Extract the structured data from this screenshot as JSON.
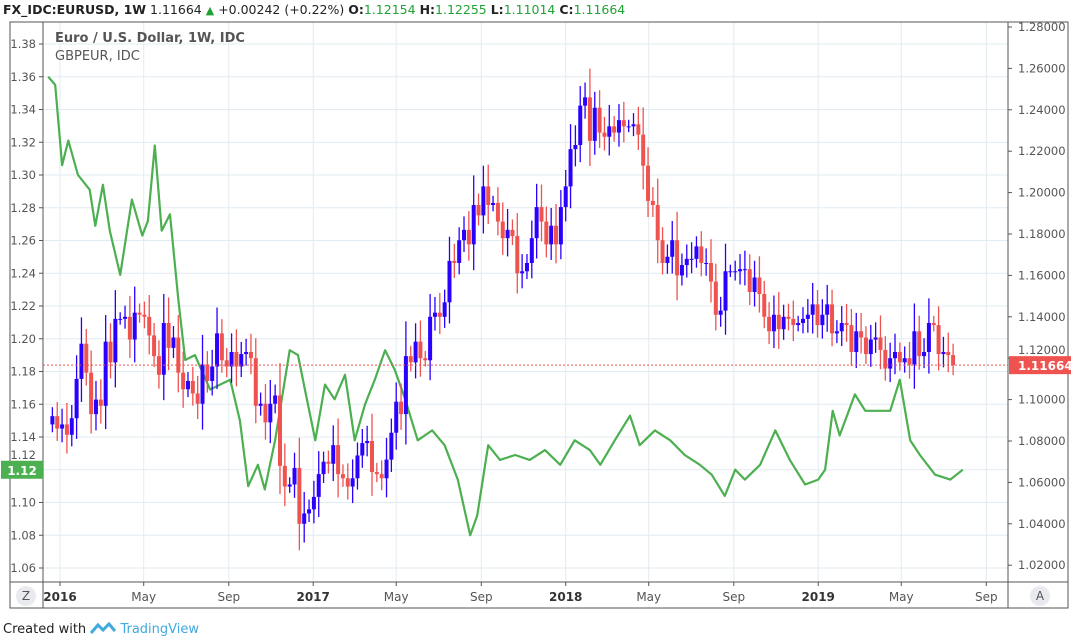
{
  "header": {
    "symbol": "FX_IDC:EURUSD, 1W",
    "last": "1.11664",
    "change": "+0.00242 (+0.22%)",
    "o_label": "O:",
    "o": "1.12154",
    "h_label": "H:",
    "h": "1.12255",
    "l_label": "L:",
    "l": "1.11014",
    "c_label": "C:",
    "c": "1.11664"
  },
  "legend": {
    "main": "Euro / U.S. Dollar, 1W, IDC",
    "compare": "GBPEUR, IDC"
  },
  "footer": {
    "created_with": "Created with",
    "brand": "TradingView"
  },
  "buttons": {
    "zoom": "Z",
    "auto": "A"
  },
  "colors": {
    "up": "#2a00ff",
    "down": "#ef5350",
    "compare_line": "#4caf50",
    "grid": "#e1ecf2",
    "last_price_label": "#ef5350",
    "compare_label": "#4caf50"
  },
  "chart_data": {
    "type": "candlestick+line",
    "x_axis": {
      "ticks": [
        "2016",
        "May",
        "Sep",
        "2017",
        "May",
        "Sep",
        "2018",
        "May",
        "Sep",
        "2019",
        "May",
        "Sep"
      ],
      "tick_dates": [
        "2016-01-01",
        "2016-05-01",
        "2016-09-01",
        "2017-01-01",
        "2017-05-01",
        "2017-09-01",
        "2018-01-01",
        "2018-05-01",
        "2018-09-01",
        "2019-01-01",
        "2019-05-01",
        "2019-09-01"
      ]
    },
    "left_axis": {
      "series": "GBPEUR",
      "range": [
        1.05,
        1.395
      ],
      "ticks": [
        "1.06",
        "1.08",
        "1.10",
        "1.12",
        "1.14",
        "1.16",
        "1.18",
        "1.20",
        "1.22",
        "1.24",
        "1.26",
        "1.28",
        "1.30",
        "1.32",
        "1.34",
        "1.36",
        "1.38"
      ],
      "current_label": "1.12",
      "current_value": 1.12
    },
    "right_axis": {
      "series": "EURUSD",
      "range": [
        1.012,
        1.288
      ],
      "ticks": [
        "1.02000",
        "1.04000",
        "1.06000",
        "1.08000",
        "1.10000",
        "1.12000",
        "1.14000",
        "1.16000",
        "1.18000",
        "1.20000",
        "1.22000",
        "1.24000",
        "1.26000",
        "1.28000"
      ],
      "last_label": "1.11664",
      "last_value": 1.11664
    },
    "candles": {
      "name": "EURUSD",
      "interval": "1W",
      "first_week": "2015-12-21",
      "first_open": 1.088,
      "close": [
        1.092,
        1.086,
        1.088,
        1.083,
        1.091,
        1.11,
        1.127,
        1.113,
        1.093,
        1.1,
        1.097,
        1.128,
        1.118,
        1.139,
        1.139,
        1.14,
        1.129,
        1.142,
        1.141,
        1.14,
        1.131,
        1.121,
        1.112,
        1.137,
        1.125,
        1.13,
        1.113,
        1.105,
        1.109,
        1.103,
        1.098,
        1.117,
        1.109,
        1.116,
        1.132,
        1.119,
        1.116,
        1.123,
        1.116,
        1.122,
        1.123,
        1.12,
        1.097,
        1.098,
        1.089,
        1.098,
        1.102,
        1.068,
        1.058,
        1.059,
        1.067,
        1.04,
        1.045,
        1.047,
        1.053,
        1.064,
        1.07,
        1.069,
        1.078,
        1.064,
        1.062,
        1.058,
        1.062,
        1.073,
        1.079,
        1.08,
        1.065,
        1.064,
        1.062,
        1.071,
        1.084,
        1.099,
        1.093,
        1.121,
        1.118,
        1.128,
        1.12,
        1.119,
        1.14,
        1.142,
        1.14,
        1.147,
        1.167,
        1.166,
        1.177,
        1.182,
        1.175,
        1.194,
        1.189,
        1.203,
        1.194,
        1.195,
        1.186,
        1.178,
        1.182,
        1.179,
        1.161,
        1.162,
        1.166,
        1.178,
        1.193,
        1.186,
        1.175,
        1.184,
        1.175,
        1.193,
        1.203,
        1.221,
        1.223,
        1.242,
        1.246,
        1.225,
        1.241,
        1.229,
        1.227,
        1.232,
        1.229,
        1.235,
        1.232,
        1.232,
        1.233,
        1.228,
        1.213,
        1.196,
        1.194,
        1.177,
        1.166,
        1.169,
        1.177,
        1.16,
        1.165,
        1.168,
        1.168,
        1.174,
        1.166,
        1.166,
        1.157,
        1.141,
        1.143,
        1.162,
        1.162,
        1.162,
        1.163,
        1.163,
        1.152,
        1.159,
        1.151,
        1.14,
        1.133,
        1.141,
        1.134,
        1.14,
        1.139,
        1.136,
        1.137,
        1.139,
        1.141,
        1.146,
        1.136,
        1.141,
        1.146,
        1.132,
        1.133,
        1.137,
        1.136,
        1.123,
        1.133,
        1.13,
        1.122,
        1.129,
        1.13,
        1.124,
        1.115,
        1.12,
        1.123,
        1.118,
        1.12,
        1.117,
        1.133,
        1.121,
        1.123,
        1.137,
        1.136,
        1.122,
        1.123,
        1.1215,
        1.11664
      ]
    },
    "line": {
      "name": "GBPEUR",
      "points": [
        [
          "2015-12-15",
          1.36
        ],
        [
          "2015-12-25",
          1.355
        ],
        [
          "2016-01-04",
          1.306
        ],
        [
          "2016-01-13",
          1.321
        ],
        [
          "2016-01-27",
          1.3
        ],
        [
          "2016-02-13",
          1.291
        ],
        [
          "2016-02-21",
          1.269
        ],
        [
          "2016-03-03",
          1.294
        ],
        [
          "2016-03-13",
          1.266
        ],
        [
          "2016-03-28",
          1.239
        ],
        [
          "2016-04-14",
          1.285
        ],
        [
          "2016-04-29",
          1.263
        ],
        [
          "2016-05-07",
          1.272
        ],
        [
          "2016-05-17",
          1.318
        ],
        [
          "2016-05-27",
          1.266
        ],
        [
          "2016-06-08",
          1.276
        ],
        [
          "2016-06-20",
          1.224
        ],
        [
          "2016-06-30",
          1.187
        ],
        [
          "2016-07-14",
          1.19
        ],
        [
          "2016-08-05",
          1.169
        ],
        [
          "2016-09-03",
          1.175
        ],
        [
          "2016-09-17",
          1.15
        ],
        [
          "2016-09-29",
          1.11
        ],
        [
          "2016-10-13",
          1.123
        ],
        [
          "2016-10-23",
          1.108
        ],
        [
          "2016-11-07",
          1.138
        ],
        [
          "2016-11-28",
          1.193
        ],
        [
          "2016-12-10",
          1.19
        ],
        [
          "2016-12-20",
          1.169
        ],
        [
          "2017-01-04",
          1.138
        ],
        [
          "2017-01-18",
          1.172
        ],
        [
          "2017-02-01",
          1.163
        ],
        [
          "2017-02-16",
          1.178
        ],
        [
          "2017-03-02",
          1.138
        ],
        [
          "2017-03-17",
          1.16
        ],
        [
          "2017-03-31",
          1.175
        ],
        [
          "2017-04-15",
          1.193
        ],
        [
          "2017-04-29",
          1.181
        ],
        [
          "2017-05-14",
          1.163
        ],
        [
          "2017-06-01",
          1.138
        ],
        [
          "2017-06-22",
          1.144
        ],
        [
          "2017-07-10",
          1.135
        ],
        [
          "2017-07-29",
          1.114
        ],
        [
          "2017-08-16",
          1.08
        ],
        [
          "2017-08-26",
          1.092
        ],
        [
          "2017-09-11",
          1.135
        ],
        [
          "2017-09-28",
          1.126
        ],
        [
          "2017-10-20",
          1.129
        ],
        [
          "2017-11-10",
          1.126
        ],
        [
          "2017-12-02",
          1.132
        ],
        [
          "2017-12-24",
          1.123
        ],
        [
          "2018-01-14",
          1.138
        ],
        [
          "2018-02-05",
          1.132
        ],
        [
          "2018-02-20",
          1.123
        ],
        [
          "2018-03-13",
          1.138
        ],
        [
          "2018-04-04",
          1.153
        ],
        [
          "2018-04-18",
          1.135
        ],
        [
          "2018-05-10",
          1.144
        ],
        [
          "2018-06-01",
          1.138
        ],
        [
          "2018-06-22",
          1.129
        ],
        [
          "2018-07-14",
          1.123
        ],
        [
          "2018-07-31",
          1.117
        ],
        [
          "2018-08-19",
          1.104
        ],
        [
          "2018-09-03",
          1.12
        ],
        [
          "2018-09-17",
          1.114
        ],
        [
          "2018-10-09",
          1.123
        ],
        [
          "2018-10-31",
          1.144
        ],
        [
          "2018-11-21",
          1.126
        ],
        [
          "2018-12-13",
          1.111
        ],
        [
          "2019-01-01",
          1.114
        ],
        [
          "2019-01-11",
          1.12
        ],
        [
          "2019-01-22",
          1.156
        ],
        [
          "2019-02-01",
          1.141
        ],
        [
          "2019-02-23",
          1.166
        ],
        [
          "2019-03-10",
          1.156
        ],
        [
          "2019-03-31",
          1.156
        ],
        [
          "2019-04-15",
          1.156
        ],
        [
          "2019-04-29",
          1.175
        ],
        [
          "2019-05-14",
          1.138
        ],
        [
          "2019-05-28",
          1.129
        ],
        [
          "2019-06-19",
          1.117
        ],
        [
          "2019-07-11",
          1.114
        ],
        [
          "2019-07-29",
          1.12
        ]
      ]
    },
    "grid": true
  }
}
